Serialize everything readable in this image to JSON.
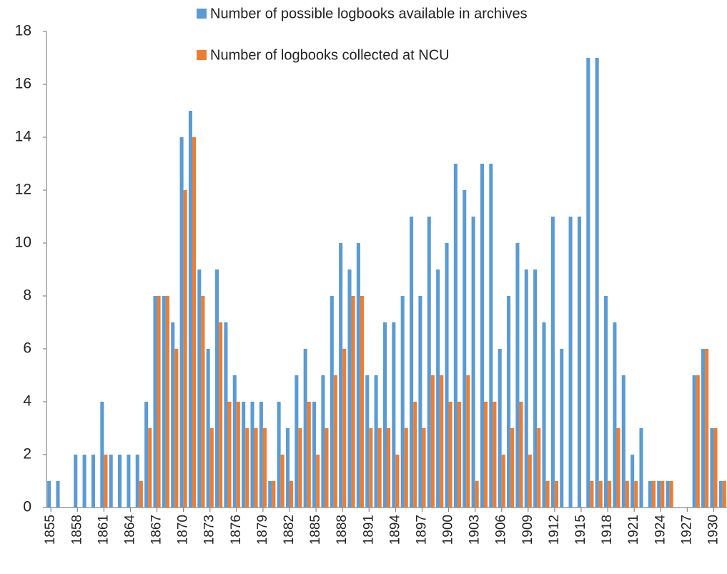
{
  "chart_data": {
    "type": "bar",
    "categories": [
      "1855",
      null,
      null,
      "1858",
      null,
      null,
      "1861",
      null,
      null,
      "1864",
      null,
      null,
      "1867",
      null,
      null,
      "1870",
      null,
      null,
      "1873",
      null,
      null,
      "1876",
      null,
      null,
      "1879",
      null,
      null,
      "1882",
      null,
      null,
      "1885",
      null,
      null,
      "1888",
      null,
      null,
      "1891",
      null,
      null,
      "1894",
      null,
      null,
      "1897",
      null,
      null,
      "1900",
      null,
      null,
      "1903",
      null,
      null,
      "1906",
      null,
      null,
      "1909",
      null,
      null,
      "1912",
      null,
      null,
      "1915",
      null,
      null,
      "1918",
      null,
      null,
      "1921",
      null,
      null,
      "1924",
      null,
      null,
      "1927",
      null,
      null,
      "1930",
      null
    ],
    "series": [
      {
        "name": "Number of possible logbooks available in archives",
        "color": "#5b9bd5",
        "values": [
          1,
          1,
          0,
          2,
          2,
          2,
          4,
          2,
          2,
          2,
          2,
          4,
          8,
          8,
          7,
          14,
          15,
          9,
          6,
          9,
          7,
          5,
          4,
          4,
          4,
          1,
          4,
          3,
          5,
          6,
          4,
          5,
          8,
          10,
          9,
          10,
          5,
          5,
          7,
          7,
          8,
          11,
          8,
          11,
          9,
          10,
          13,
          12,
          11,
          13,
          13,
          6,
          8,
          10,
          9,
          9,
          7,
          11,
          6,
          11,
          11,
          17,
          17,
          8,
          7,
          5,
          2,
          3,
          1,
          1,
          1,
          0,
          0,
          5,
          6,
          3,
          1
        ]
      },
      {
        "name": "Number of logbooks collected at NCU",
        "color": "#ed7d31",
        "values": [
          0,
          0,
          0,
          0,
          0,
          0,
          2,
          0,
          0,
          0,
          1,
          3,
          8,
          8,
          6,
          12,
          14,
          8,
          3,
          7,
          4,
          4,
          3,
          3,
          3,
          1,
          2,
          1,
          3,
          4,
          2,
          3,
          5,
          6,
          8,
          8,
          3,
          3,
          3,
          2,
          3,
          4,
          3,
          5,
          5,
          4,
          4,
          5,
          1,
          4,
          4,
          2,
          3,
          4,
          2,
          3,
          1,
          1,
          0,
          0,
          0,
          1,
          1,
          1,
          3,
          1,
          1,
          0,
          1,
          1,
          1,
          0,
          0,
          5,
          6,
          3,
          1
        ]
      }
    ],
    "ylim": [
      0,
      18
    ],
    "yticks": [
      0,
      2,
      4,
      6,
      8,
      10,
      12,
      14,
      16,
      18
    ],
    "grid": false,
    "legend": "top"
  }
}
